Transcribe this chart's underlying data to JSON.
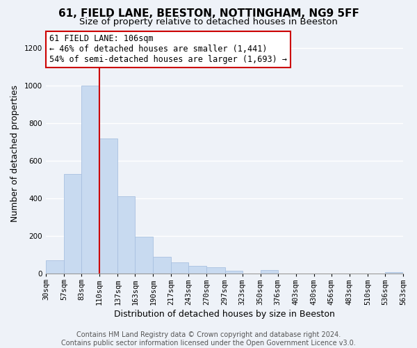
{
  "title": "61, FIELD LANE, BEESTON, NOTTINGHAM, NG9 5FF",
  "subtitle": "Size of property relative to detached houses in Beeston",
  "xlabel": "Distribution of detached houses by size in Beeston",
  "ylabel": "Number of detached properties",
  "bar_color": "#c8daf0",
  "bar_edge_color": "#a8c0e0",
  "vline_x": 110,
  "vline_color": "#cc0000",
  "annotation_line1": "61 FIELD LANE: 106sqm",
  "annotation_line2": "← 46% of detached houses are smaller (1,441)",
  "annotation_line3": "54% of semi-detached houses are larger (1,693) →",
  "annotation_box_color": "#ffffff",
  "annotation_box_edge": "#cc0000",
  "footer_line1": "Contains HM Land Registry data © Crown copyright and database right 2024.",
  "footer_line2": "Contains public sector information licensed under the Open Government Licence v3.0.",
  "bins": [
    30,
    57,
    83,
    110,
    137,
    163,
    190,
    217,
    243,
    270,
    297,
    323,
    350,
    376,
    403,
    430,
    456,
    483,
    510,
    536,
    563
  ],
  "counts": [
    70,
    530,
    1000,
    720,
    410,
    197,
    90,
    58,
    43,
    32,
    16,
    0,
    20,
    0,
    0,
    0,
    0,
    0,
    0,
    8,
    0
  ],
  "ylim": [
    0,
    1280
  ],
  "yticks": [
    0,
    200,
    400,
    600,
    800,
    1000,
    1200
  ],
  "background_color": "#eef2f8",
  "grid_color": "#ffffff",
  "title_fontsize": 11,
  "subtitle_fontsize": 9.5,
  "axis_label_fontsize": 9,
  "tick_fontsize": 7.5,
  "annotation_fontsize": 8.5,
  "footer_fontsize": 7
}
